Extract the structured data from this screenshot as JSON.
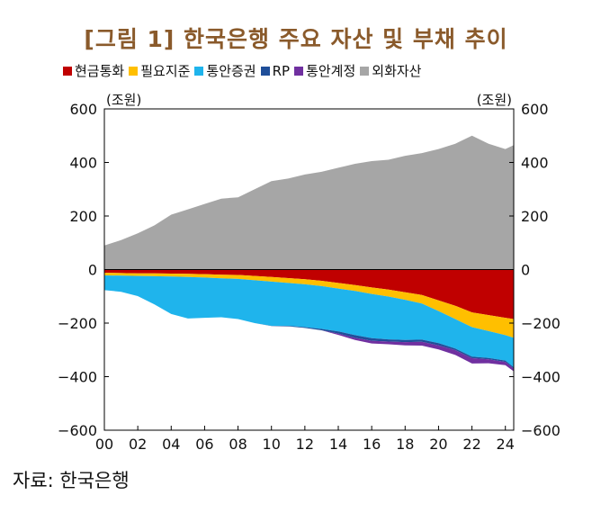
{
  "title": "[그림 1] 한국은행 주요 자산 및 부채 추이",
  "source": "자료: 한국은행",
  "chart_data": {
    "type": "area",
    "title": "[그림 1] 한국은행 주요 자산 및 부채 추이",
    "unit_left": "(조원)",
    "unit_right": "(조원)",
    "ylim": [
      -600,
      600
    ],
    "yticks": [
      "600",
      "400",
      "200",
      "0",
      "−200",
      "−400",
      "−600"
    ],
    "ytick_values": [
      600,
      400,
      200,
      0,
      -200,
      -400,
      -600
    ],
    "xlim": [
      2000,
      2024.5
    ],
    "xticks": [
      "00",
      "02",
      "04",
      "06",
      "08",
      "10",
      "12",
      "14",
      "16",
      "18",
      "20",
      "22",
      "24"
    ],
    "xtick_values": [
      2000,
      2002,
      2004,
      2006,
      2008,
      2010,
      2012,
      2014,
      2016,
      2018,
      2020,
      2022,
      2024
    ],
    "x": [
      2000,
      2001,
      2002,
      2003,
      2004,
      2005,
      2006,
      2007,
      2008,
      2009,
      2010,
      2011,
      2012,
      2013,
      2014,
      2015,
      2016,
      2017,
      2018,
      2019,
      2020,
      2021,
      2022,
      2023,
      2024,
      2024.5
    ],
    "series": [
      {
        "name": "현금통화",
        "color": "#c00000",
        "side": "liability",
        "values": [
          -12,
          -13,
          -14,
          -14,
          -15,
          -16,
          -17,
          -19,
          -20,
          -24,
          -28,
          -32,
          -36,
          -42,
          -50,
          -58,
          -67,
          -75,
          -85,
          -95,
          -115,
          -135,
          -160,
          -170,
          -180,
          -185
        ]
      },
      {
        "name": "필요지준",
        "color": "#ffbf00",
        "side": "liability",
        "values": [
          -10,
          -10,
          -10,
          -11,
          -11,
          -12,
          -13,
          -14,
          -15,
          -16,
          -17,
          -18,
          -19,
          -20,
          -21,
          -22,
          -24,
          -26,
          -28,
          -32,
          -40,
          -50,
          -55,
          -60,
          -65,
          -70
        ]
      },
      {
        "name": "통안증권",
        "color": "#1fb4ec",
        "side": "liability",
        "values": [
          -55,
          -60,
          -75,
          -105,
          -140,
          -155,
          -150,
          -145,
          -150,
          -160,
          -165,
          -160,
          -160,
          -160,
          -160,
          -165,
          -165,
          -160,
          -150,
          -135,
          -120,
          -110,
          -110,
          -100,
          -95,
          -110
        ]
      },
      {
        "name": "RP",
        "color": "#1f4e99",
        "side": "liability",
        "values": [
          0,
          0,
          0,
          0,
          0,
          0,
          0,
          0,
          0,
          0,
          -1,
          -2,
          -3,
          -5,
          -8,
          -10,
          -10,
          -8,
          -8,
          -8,
          -8,
          -6,
          -6,
          -5,
          -5,
          -5
        ]
      },
      {
        "name": "통안계정",
        "color": "#7030a0",
        "side": "liability",
        "values": [
          0,
          0,
          0,
          0,
          0,
          0,
          0,
          0,
          0,
          0,
          0,
          0,
          0,
          0,
          -5,
          -8,
          -10,
          -10,
          -12,
          -14,
          -15,
          -18,
          -20,
          -15,
          -12,
          -10
        ]
      },
      {
        "name": "외화자산",
        "color": "#a6a6a6",
        "side": "asset",
        "values": [
          90,
          110,
          135,
          165,
          205,
          225,
          245,
          265,
          270,
          300,
          330,
          340,
          355,
          365,
          380,
          395,
          405,
          410,
          425,
          435,
          450,
          470,
          500,
          470,
          450,
          465
        ]
      }
    ]
  }
}
